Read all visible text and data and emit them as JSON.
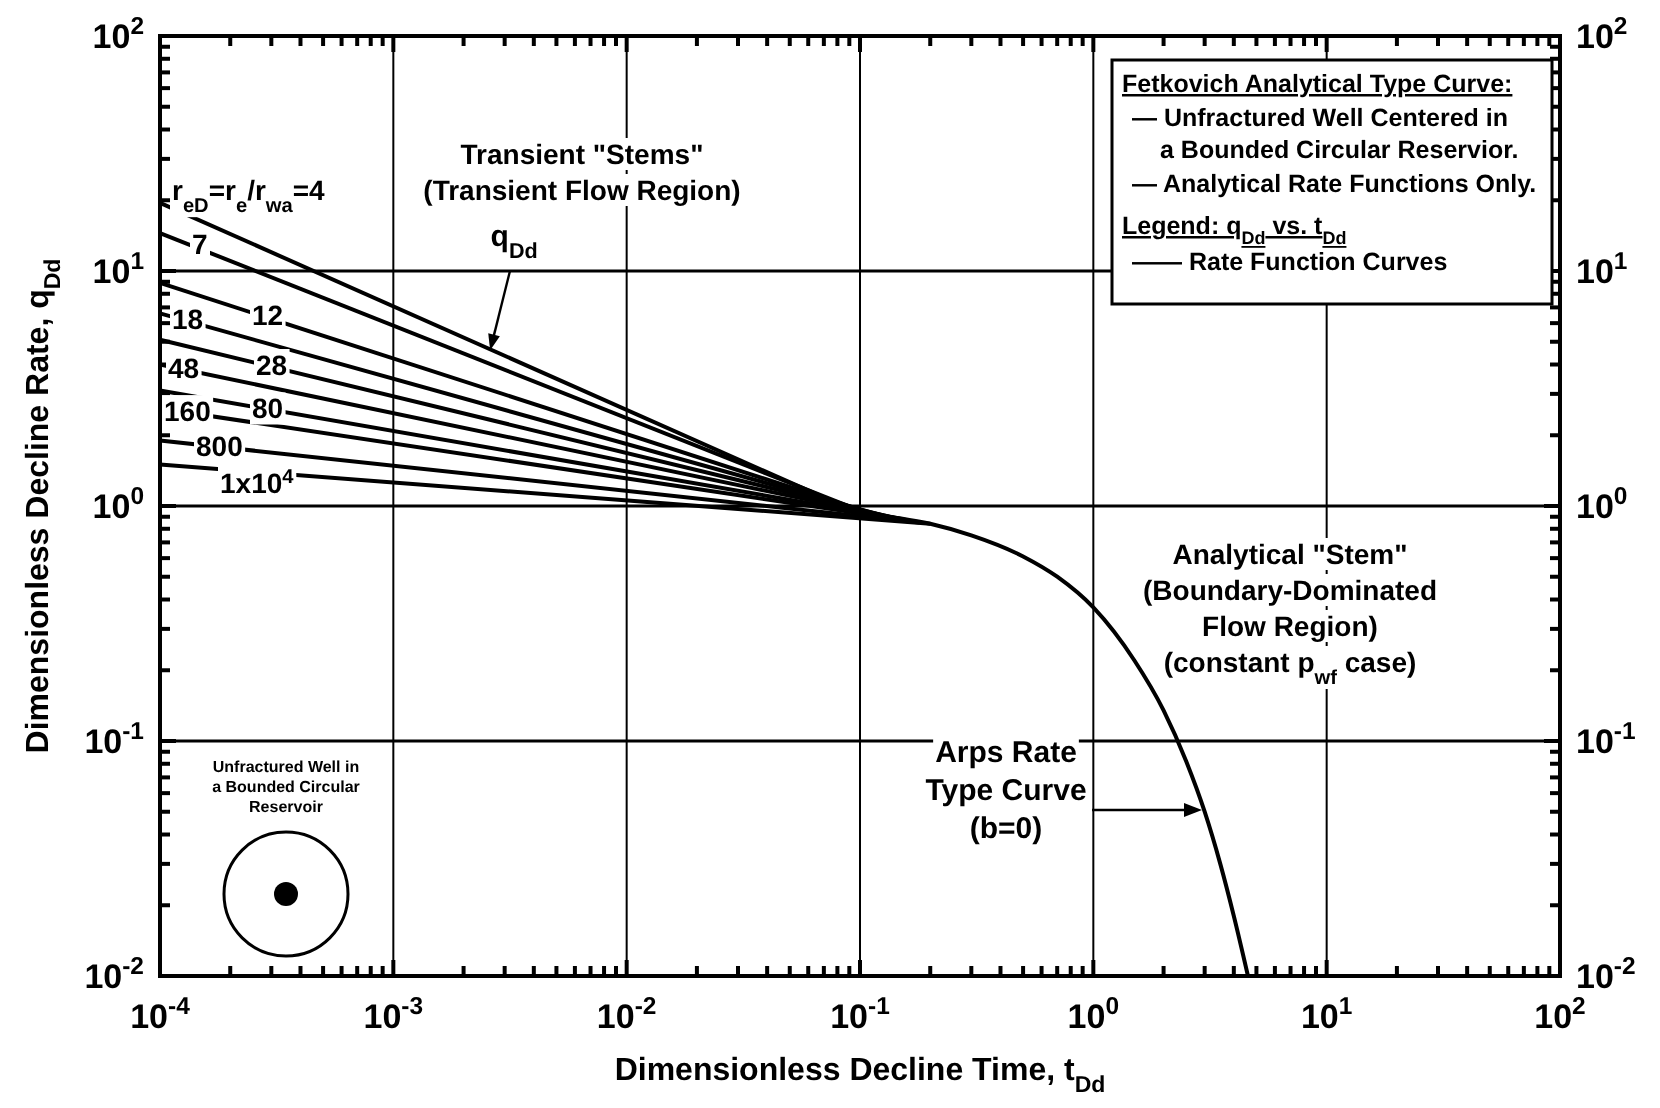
{
  "chart_data": {
    "type": "line",
    "xlabel": "Dimensionless Decline Time, t$_{Dd}$",
    "ylabel": "Dimensionless Decline Rate, q$_{Dd}$",
    "log": "xy",
    "grid": true,
    "marker": "none",
    "line_style": "solid",
    "xlim": [
      0.0001,
      100
    ],
    "xticks": [
      {
        "value": 0.0001,
        "label": "10$^{-4}$"
      },
      {
        "value": 0.001,
        "label": "10$^{-3}$"
      },
      {
        "value": 0.01,
        "label": "10$^{-2}$"
      },
      {
        "value": 0.1,
        "label": "10$^{-1}$"
      },
      {
        "value": 1,
        "label": "10$^{0}$"
      },
      {
        "value": 10,
        "label": "10$^{1}$"
      },
      {
        "value": 100,
        "label": "10$^{2}$"
      }
    ],
    "ylim": [
      0.01,
      100
    ],
    "yticks": [
      {
        "value": 0.01,
        "label": "10$^{-2}$"
      },
      {
        "value": 0.1,
        "label": "10$^{-1}$"
      },
      {
        "value": 1,
        "label": "10$^{0}$"
      },
      {
        "value": 10,
        "label": "10$^{1}$"
      },
      {
        "value": 100,
        "label": "10$^{2}$"
      }
    ],
    "series": [
      {
        "name": "r$_{eD}$=r$_{e}$/r$_{wa}$=4",
        "color": "#000000",
        "x": [
          0.0001,
          0.1
        ],
        "values": [
          19.5,
          0.93
        ]
      },
      {
        "name": "7",
        "color": "#000000",
        "x": [
          0.0001,
          0.11
        ],
        "values": [
          14.5,
          0.92
        ]
      },
      {
        "name": "12",
        "color": "#000000",
        "x": [
          0.0001,
          0.12
        ],
        "values": [
          8.9,
          0.91
        ]
      },
      {
        "name": "18",
        "color": "#000000",
        "x": [
          0.0001,
          0.13
        ],
        "values": [
          6.6,
          0.9
        ]
      },
      {
        "name": "28",
        "color": "#000000",
        "x": [
          0.0001,
          0.14
        ],
        "values": [
          5.1,
          0.89
        ]
      },
      {
        "name": "48",
        "color": "#000000",
        "x": [
          0.0001,
          0.15
        ],
        "values": [
          4.0,
          0.88
        ]
      },
      {
        "name": "80",
        "color": "#000000",
        "x": [
          0.0001,
          0.16
        ],
        "values": [
          3.1,
          0.87
        ]
      },
      {
        "name": "160",
        "color": "#000000",
        "x": [
          0.0001,
          0.17
        ],
        "values": [
          2.6,
          0.86
        ]
      },
      {
        "name": "800",
        "color": "#000000",
        "x": [
          0.0001,
          0.18
        ],
        "values": [
          1.9,
          0.85
        ]
      },
      {
        "name": "1x10$^{4}$",
        "color": "#000000",
        "x": [
          0.0001,
          0.2
        ],
        "values": [
          1.5,
          0.84
        ]
      },
      {
        "color": "#000000",
        "x": [
          0.1,
          0.2,
          0.3,
          0.5,
          0.7,
          1,
          1.5,
          2,
          2.5,
          3,
          3.5,
          4,
          4.6
        ],
        "values": [
          0.93,
          0.84,
          0.75,
          0.61,
          0.5,
          0.37,
          0.22,
          0.135,
          0.082,
          0.05,
          0.03,
          0.018,
          0.01
        ]
      }
    ],
    "annotations": [
      "Fetkovich Analytical Type Curve:",
      "— Unfractured Well Centered in",
      "a Bounded Circular Reservior.",
      "— Analytical Rate Functions Only.",
      "Legend: q$_{Dd}$ vs. t$_{Dd}$",
      "—— Rate Function Curves",
      "Transient \"Stems\"\n(Transient Flow Region)",
      {
        "text": "q$_{Dd}$",
        "x": 0.0026,
        "y": 4.6
      },
      "Analytical \"Stem\"\n(Boundary-Dominated\nFlow Region)\n(constant p$_{wf}$ case)",
      "Arps Rate\nType Curve\n(b=0)",
      "Unfractured Well in\na Bounded Circular\nReservoir"
    ]
  }
}
